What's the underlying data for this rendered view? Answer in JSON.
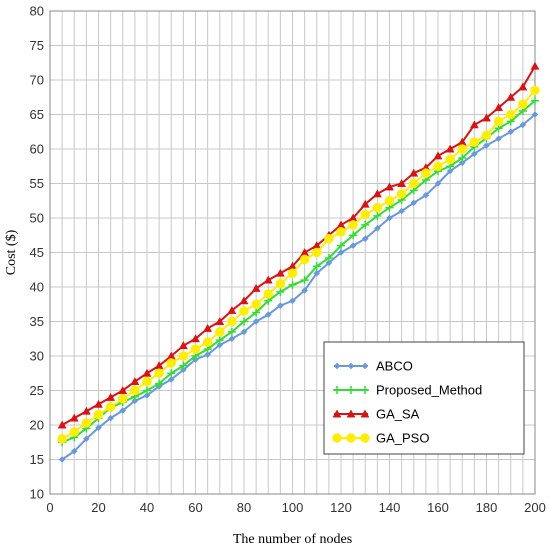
{
  "chart_data": {
    "type": "line",
    "title": "",
    "xlabel": "The number of nodes",
    "ylabel": "Cost  ($)",
    "xlim": [
      0,
      200
    ],
    "ylim": [
      10,
      80
    ],
    "xticks": [
      "0",
      "20",
      "40",
      "60",
      "80",
      "100",
      "120",
      "140",
      "160",
      "180",
      "200"
    ],
    "yticks": [
      "10",
      "15",
      "20",
      "25",
      "30",
      "35",
      "40",
      "45",
      "50",
      "55",
      "60",
      "65",
      "70",
      "75",
      "80"
    ],
    "grid": true,
    "legend_position": "lower-right",
    "x": [
      5,
      10,
      15,
      20,
      25,
      30,
      35,
      40,
      45,
      50,
      55,
      60,
      65,
      70,
      75,
      80,
      85,
      90,
      95,
      100,
      105,
      110,
      115,
      120,
      125,
      130,
      135,
      140,
      145,
      150,
      155,
      160,
      165,
      170,
      175,
      180,
      185,
      190,
      195,
      200
    ],
    "series": [
      {
        "name": "ABCO",
        "color": "#6699dd",
        "marker": "diamond",
        "values": [
          15.0,
          16.2,
          18.0,
          19.6,
          21.0,
          22.1,
          23.5,
          24.3,
          25.6,
          26.6,
          28.0,
          29.5,
          30.2,
          31.6,
          32.5,
          33.5,
          35.0,
          36.0,
          37.3,
          38.0,
          39.5,
          42.0,
          43.5,
          45.0,
          46.0,
          47.0,
          48.5,
          50.0,
          51.0,
          52.2,
          53.3,
          55.0,
          56.8,
          58.0,
          59.3,
          60.5,
          61.5,
          62.5,
          63.5,
          65.0
        ]
      },
      {
        "name": "Proposed_Method",
        "color": "#33dd33",
        "marker": "plus",
        "values": [
          17.5,
          18.2,
          19.5,
          21.0,
          22.5,
          23.3,
          24.1,
          25.0,
          26.0,
          27.5,
          28.6,
          30.0,
          31.0,
          32.3,
          33.5,
          35.0,
          36.3,
          38.0,
          39.3,
          40.3,
          41.0,
          43.0,
          44.2,
          46.0,
          47.5,
          49.0,
          50.3,
          51.5,
          52.6,
          54.0,
          55.5,
          56.8,
          57.5,
          58.7,
          60.3,
          61.6,
          63.0,
          64.0,
          65.5,
          67.0
        ]
      },
      {
        "name": "GA_SA",
        "color": "#dd1111",
        "marker": "triangle",
        "values": [
          20.0,
          21.0,
          22.0,
          23.0,
          24.0,
          25.0,
          26.3,
          27.5,
          28.6,
          30.0,
          31.5,
          32.5,
          34.0,
          35.0,
          36.6,
          38.0,
          39.8,
          41.0,
          42.0,
          43.0,
          45.0,
          46.0,
          47.5,
          49.0,
          50.0,
          52.0,
          53.5,
          54.5,
          55.0,
          56.5,
          57.3,
          59.0,
          60.0,
          61.0,
          63.5,
          64.5,
          66.0,
          67.5,
          69.0,
          72.0
        ]
      },
      {
        "name": "GA_PSO",
        "color": "#ffee00",
        "marker": "circle",
        "values": [
          18.0,
          19.0,
          20.3,
          21.5,
          22.6,
          23.8,
          25.0,
          26.3,
          27.5,
          29.0,
          30.0,
          31.0,
          32.0,
          33.5,
          35.0,
          36.5,
          37.5,
          39.0,
          40.5,
          42.0,
          44.0,
          45.0,
          47.0,
          48.0,
          49.0,
          50.5,
          51.5,
          52.5,
          53.5,
          55.0,
          56.5,
          57.5,
          58.5,
          60.0,
          61.0,
          62.0,
          64.0,
          65.0,
          66.5,
          68.5
        ]
      }
    ]
  }
}
